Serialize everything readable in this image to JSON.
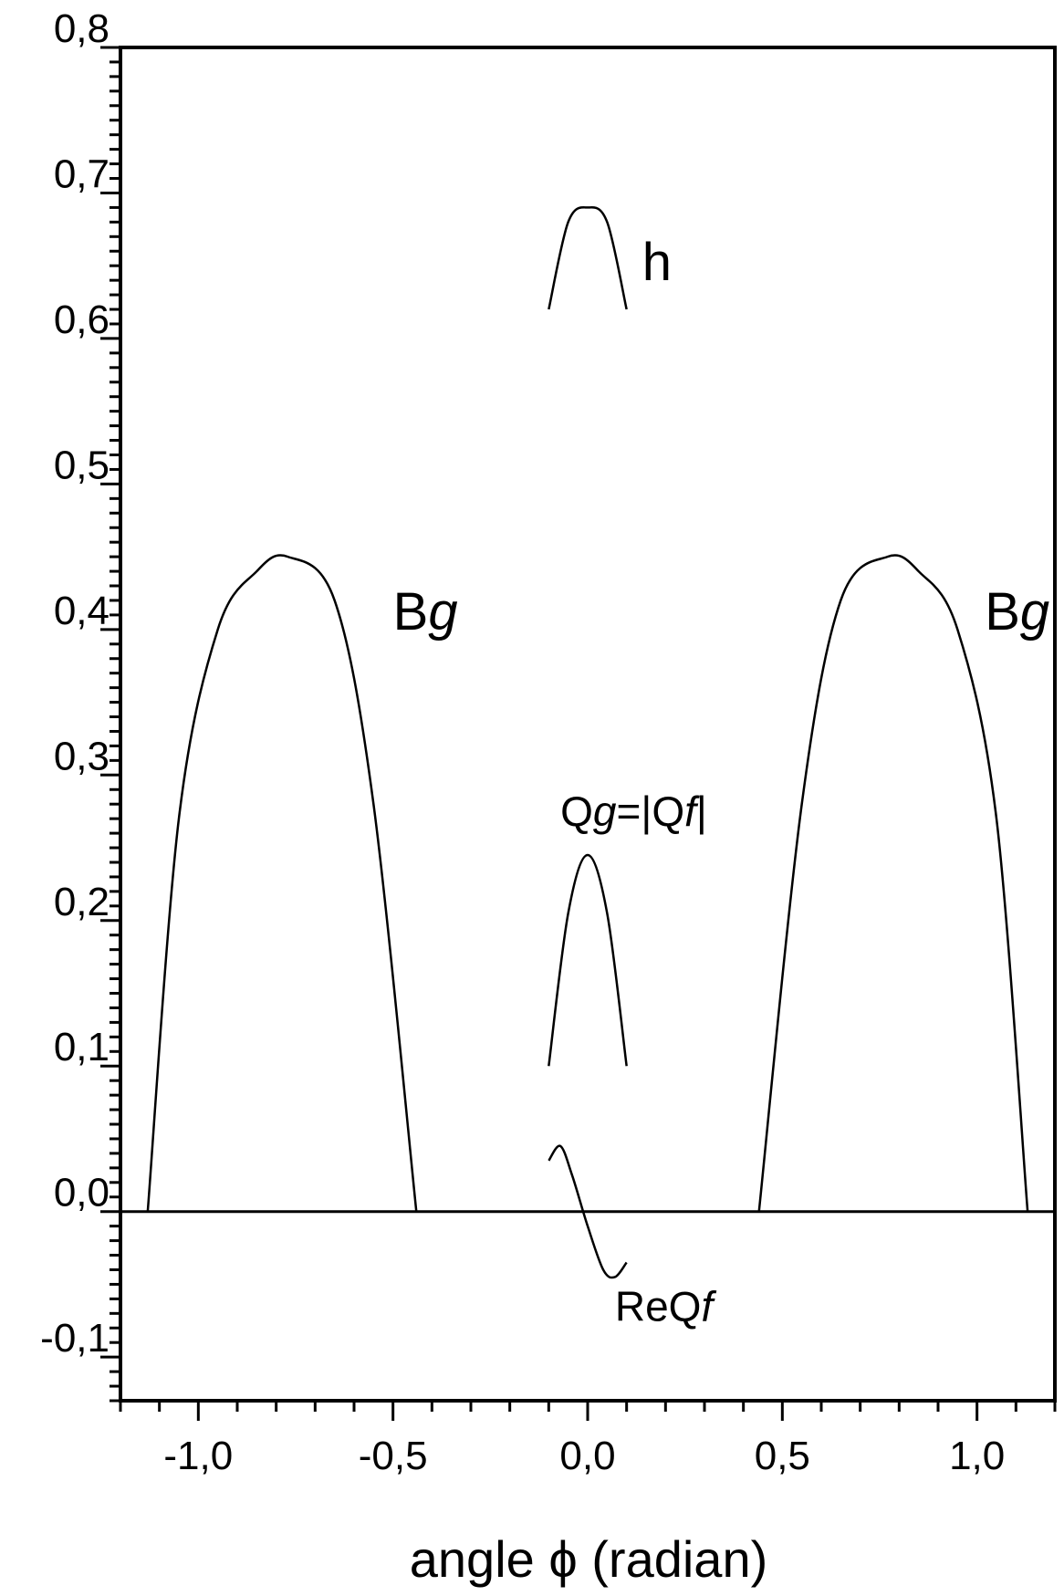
{
  "chart_data": {
    "type": "line",
    "title": "",
    "xlabel": "angle ϕ (radian)",
    "ylabel": "",
    "xlim": [
      -1.2,
      1.2
    ],
    "ylim": [
      -0.13,
      0.8
    ],
    "grid": false,
    "x_ticks": [
      {
        "value": -1.0,
        "label": "-1,0"
      },
      {
        "value": -0.5,
        "label": "-0,5"
      },
      {
        "value": 0.0,
        "label": "0,0"
      },
      {
        "value": 0.5,
        "label": "0,5"
      },
      {
        "value": 1.0,
        "label": "1,0"
      }
    ],
    "y_ticks": [
      {
        "value": -0.1,
        "label": "-0,1"
      },
      {
        "value": 0.0,
        "label": "0,0"
      },
      {
        "value": 0.1,
        "label": "0,1"
      },
      {
        "value": 0.2,
        "label": "0,2"
      },
      {
        "value": 0.3,
        "label": "0,3"
      },
      {
        "value": 0.4,
        "label": "0,4"
      },
      {
        "value": 0.5,
        "label": "0,5"
      },
      {
        "value": 0.6,
        "label": "0,6"
      },
      {
        "value": 0.7,
        "label": "0,7"
      },
      {
        "value": 0.8,
        "label": "0,8"
      }
    ],
    "series": [
      {
        "x": [
          -1.13,
          -1.05,
          -0.95,
          -0.85,
          -0.77,
          -0.65,
          -0.55,
          -0.44
        ],
        "y": [
          0.0,
          0.27,
          0.4,
          0.44,
          0.45,
          0.42,
          0.28,
          0.0
        ]
      },
      {
        "x": [
          0.44,
          0.55,
          0.65,
          0.77,
          0.85,
          0.95,
          1.05,
          1.13
        ],
        "y": [
          0.0,
          0.28,
          0.42,
          0.45,
          0.44,
          0.4,
          0.27,
          0.0
        ]
      },
      {
        "x": [
          -0.1,
          -0.05,
          0.0,
          0.05,
          0.1
        ],
        "y": [
          0.1,
          0.205,
          0.245,
          0.205,
          0.1
        ]
      },
      {
        "x": [
          -0.1,
          -0.05,
          0.0,
          0.05,
          0.1
        ],
        "y": [
          0.62,
          0.68,
          0.69,
          0.68,
          0.62
        ]
      },
      {
        "x": [
          -0.1,
          -0.07,
          -0.04,
          0.0,
          0.04,
          0.07,
          0.1
        ],
        "y": [
          0.035,
          0.045,
          0.025,
          -0.01,
          -0.04,
          -0.045,
          -0.035
        ]
      }
    ],
    "annotations": [
      {
        "text": "h",
        "x": 0.14,
        "y": 0.64
      },
      {
        "text": "Bg",
        "x": -0.5,
        "y": 0.4,
        "italic_suffix": "g"
      },
      {
        "text": "Bg",
        "x": 1.02,
        "y": 0.4,
        "italic_suffix": "g"
      },
      {
        "text": "Qg=|Qf|",
        "x": -0.07,
        "y": 0.265
      },
      {
        "text": "ReQf",
        "x": 0.07,
        "y": -0.075
      }
    ]
  }
}
